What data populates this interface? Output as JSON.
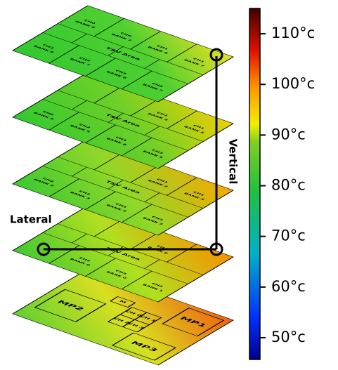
{
  "colorbar": {
    "range": [
      45.7,
      115
    ],
    "ticks": [
      {
        "value": 110,
        "label": "110°c"
      },
      {
        "value": 100,
        "label": "100°c"
      },
      {
        "value": 90,
        "label": "90°c"
      },
      {
        "value": 80,
        "label": "80°c"
      },
      {
        "value": 70,
        "label": "70°c"
      },
      {
        "value": 60,
        "label": "60°c"
      },
      {
        "value": 50,
        "label": "50°c"
      }
    ]
  },
  "annotations": {
    "lateral": "Lateral",
    "vertical": "Vertical"
  },
  "layers": [
    {
      "tsv_label": "TSV Area",
      "banks": [
        [
          "CH0",
          "BANK 6"
        ],
        [
          "CH0",
          "BANK 7"
        ],
        [
          "CH1",
          "BANK 6"
        ],
        [
          "CH1",
          "BANK 7"
        ],
        [
          "CH2",
          "BANK 6"
        ],
        [
          "CH2",
          "BANK 7"
        ],
        [
          "CH3",
          "BANK 6"
        ],
        [
          "CH3",
          "BANK 7"
        ]
      ]
    },
    {
      "tsv_label": "TSV Area",
      "banks": [
        null,
        null,
        [
          "CH1",
          "BANK 4"
        ],
        [
          "CH1",
          "BANK 5"
        ],
        [
          "CH2",
          "BANK 4"
        ],
        [
          "CH2",
          "BANK 5"
        ],
        [
          "CH3",
          "BANK 4"
        ],
        [
          "CH3",
          "BANK 5"
        ]
      ]
    },
    {
      "tsv_label": "TSV Area",
      "banks": [
        null,
        null,
        [
          "CH1",
          "BANK 2"
        ],
        [
          "CH1",
          "BANK 3"
        ],
        [
          "CH2",
          "BANK 2"
        ],
        [
          "CH2",
          "BANK 3"
        ],
        [
          "CH3",
          "BANK 2"
        ],
        [
          "CH3",
          "BANK 3"
        ]
      ]
    },
    {
      "tsv_label": "TSV Area",
      "banks": [
        null,
        null,
        [
          "CH1",
          "BANK 0"
        ],
        null,
        null,
        [
          "CH2",
          "BANK 0"
        ],
        [
          "CH3",
          "BANK 0"
        ],
        [
          "CH3",
          "BANK 1"
        ]
      ]
    }
  ],
  "logic_layer": {
    "blocks": [
      "MP2",
      "MP1",
      "MP3",
      "M",
      "CH 0",
      "CH 1",
      "CH 2",
      "CH 3"
    ]
  }
}
